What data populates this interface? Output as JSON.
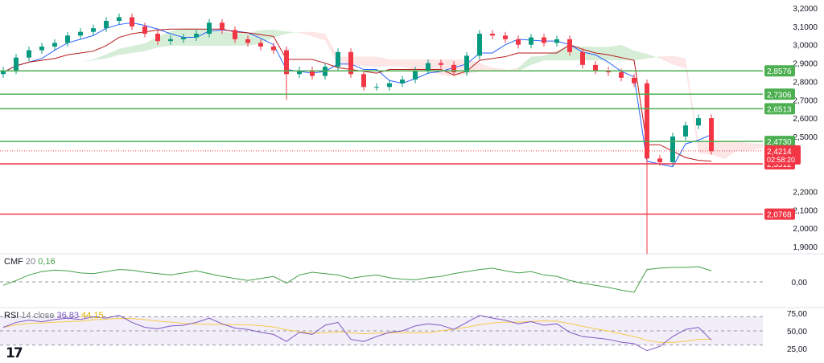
{
  "chart_data": {
    "type": "candlestick",
    "price_axis": {
      "ticks": [
        "3,2000",
        "3,1000",
        "3,0000",
        "2,9000",
        "2,8000",
        "2,7000",
        "2,6000",
        "2,5000",
        "2,2000",
        "2,1000",
        "2,0000",
        "1,9000"
      ],
      "tick_values": [
        3.2,
        3.1,
        3.0,
        2.9,
        2.8,
        2.7,
        2.6,
        2.5,
        2.2,
        2.1,
        2.0,
        1.9
      ],
      "ylim": [
        1.9,
        3.2
      ]
    },
    "closes": [
      2.86,
      2.93,
      2.97,
      2.99,
      3.01,
      3.05,
      3.07,
      3.09,
      3.13,
      3.15,
      3.1,
      3.06,
      3.02,
      3.03,
      3.04,
      3.06,
      3.12,
      3.08,
      3.03,
      3.01,
      2.99,
      2.97,
      2.84,
      2.86,
      2.83,
      2.88,
      2.96,
      2.84,
      2.77,
      2.77,
      2.79,
      2.81,
      2.86,
      2.9,
      2.89,
      2.85,
      2.94,
      3.06,
      3.05,
      3.03,
      3.0,
      3.04,
      3.01,
      3.03,
      2.96,
      2.89,
      2.86,
      2.85,
      2.82,
      2.79,
      2.38,
      2.36,
      2.5,
      2.56,
      2.6,
      2.42
    ],
    "low_overrides": {
      "22": 2.7,
      "50": 1.86
    },
    "levels": [
      {
        "value": 2.8576,
        "label": "2,8576",
        "color": "#4caf50"
      },
      {
        "value": 2.7306,
        "label": "2,7306",
        "color": "#4caf50"
      },
      {
        "value": 2.6513,
        "label": "2,6513",
        "color": "#4caf50"
      },
      {
        "value": 2.473,
        "label": "2,4730",
        "color": "#4caf50"
      },
      {
        "value": 2.3512,
        "label": "2,3512",
        "color": "#f23645"
      },
      {
        "value": 2.0768,
        "label": "2,0768",
        "color": "#f23645"
      }
    ],
    "current_price": {
      "value": 2.4214,
      "label": "2,4214",
      "countdown": "02:58:20",
      "color": "#f23645"
    },
    "colors": {
      "up": "#089981",
      "down": "#f23645",
      "tenkan": "#2962ff",
      "kijun": "#b71c1c",
      "cloud_up": "#a5d6a7",
      "cloud_down": "#f8c8c8"
    },
    "cmf": {
      "title": "CMF",
      "length": "20",
      "value": "0,16",
      "zero_label": "0,00",
      "ylim": [
        -0.35,
        0.35
      ],
      "color": "#43a047",
      "values": [
        -0.05,
        0.02,
        0.1,
        0.15,
        0.17,
        0.16,
        0.13,
        0.12,
        0.15,
        0.18,
        0.17,
        0.14,
        0.12,
        0.1,
        0.13,
        0.16,
        0.12,
        0.08,
        0.05,
        0.02,
        0.05,
        0.08,
        -0.02,
        0.1,
        0.14,
        0.12,
        0.1,
        0.05,
        0.08,
        0.1,
        0.06,
        0.04,
        0.03,
        0.06,
        0.08,
        0.12,
        0.15,
        0.18,
        0.2,
        0.16,
        0.13,
        0.15,
        0.1,
        0.08,
        0.02,
        -0.02,
        -0.05,
        -0.08,
        -0.12,
        -0.15,
        0.18,
        0.2,
        0.21,
        0.21,
        0.22,
        0.16
      ]
    },
    "rsi": {
      "title": "RSI",
      "params": "14 close",
      "value": "36,83",
      "ma_value": "44,15",
      "ticks": [
        "75,00",
        "50,00",
        "25,00"
      ],
      "ylim": [
        15,
        85
      ],
      "color": "#7e57c2",
      "ma_color": "#f7c948",
      "values": [
        55,
        62,
        65,
        63,
        66,
        68,
        66,
        70,
        68,
        72,
        62,
        55,
        53,
        57,
        58,
        62,
        68,
        60,
        54,
        52,
        48,
        45,
        35,
        48,
        45,
        58,
        62,
        38,
        35,
        42,
        48,
        50,
        57,
        60,
        58,
        52,
        62,
        72,
        68,
        65,
        60,
        63,
        58,
        60,
        48,
        42,
        40,
        38,
        34,
        32,
        22,
        28,
        42,
        52,
        55,
        37
      ]
    }
  }
}
